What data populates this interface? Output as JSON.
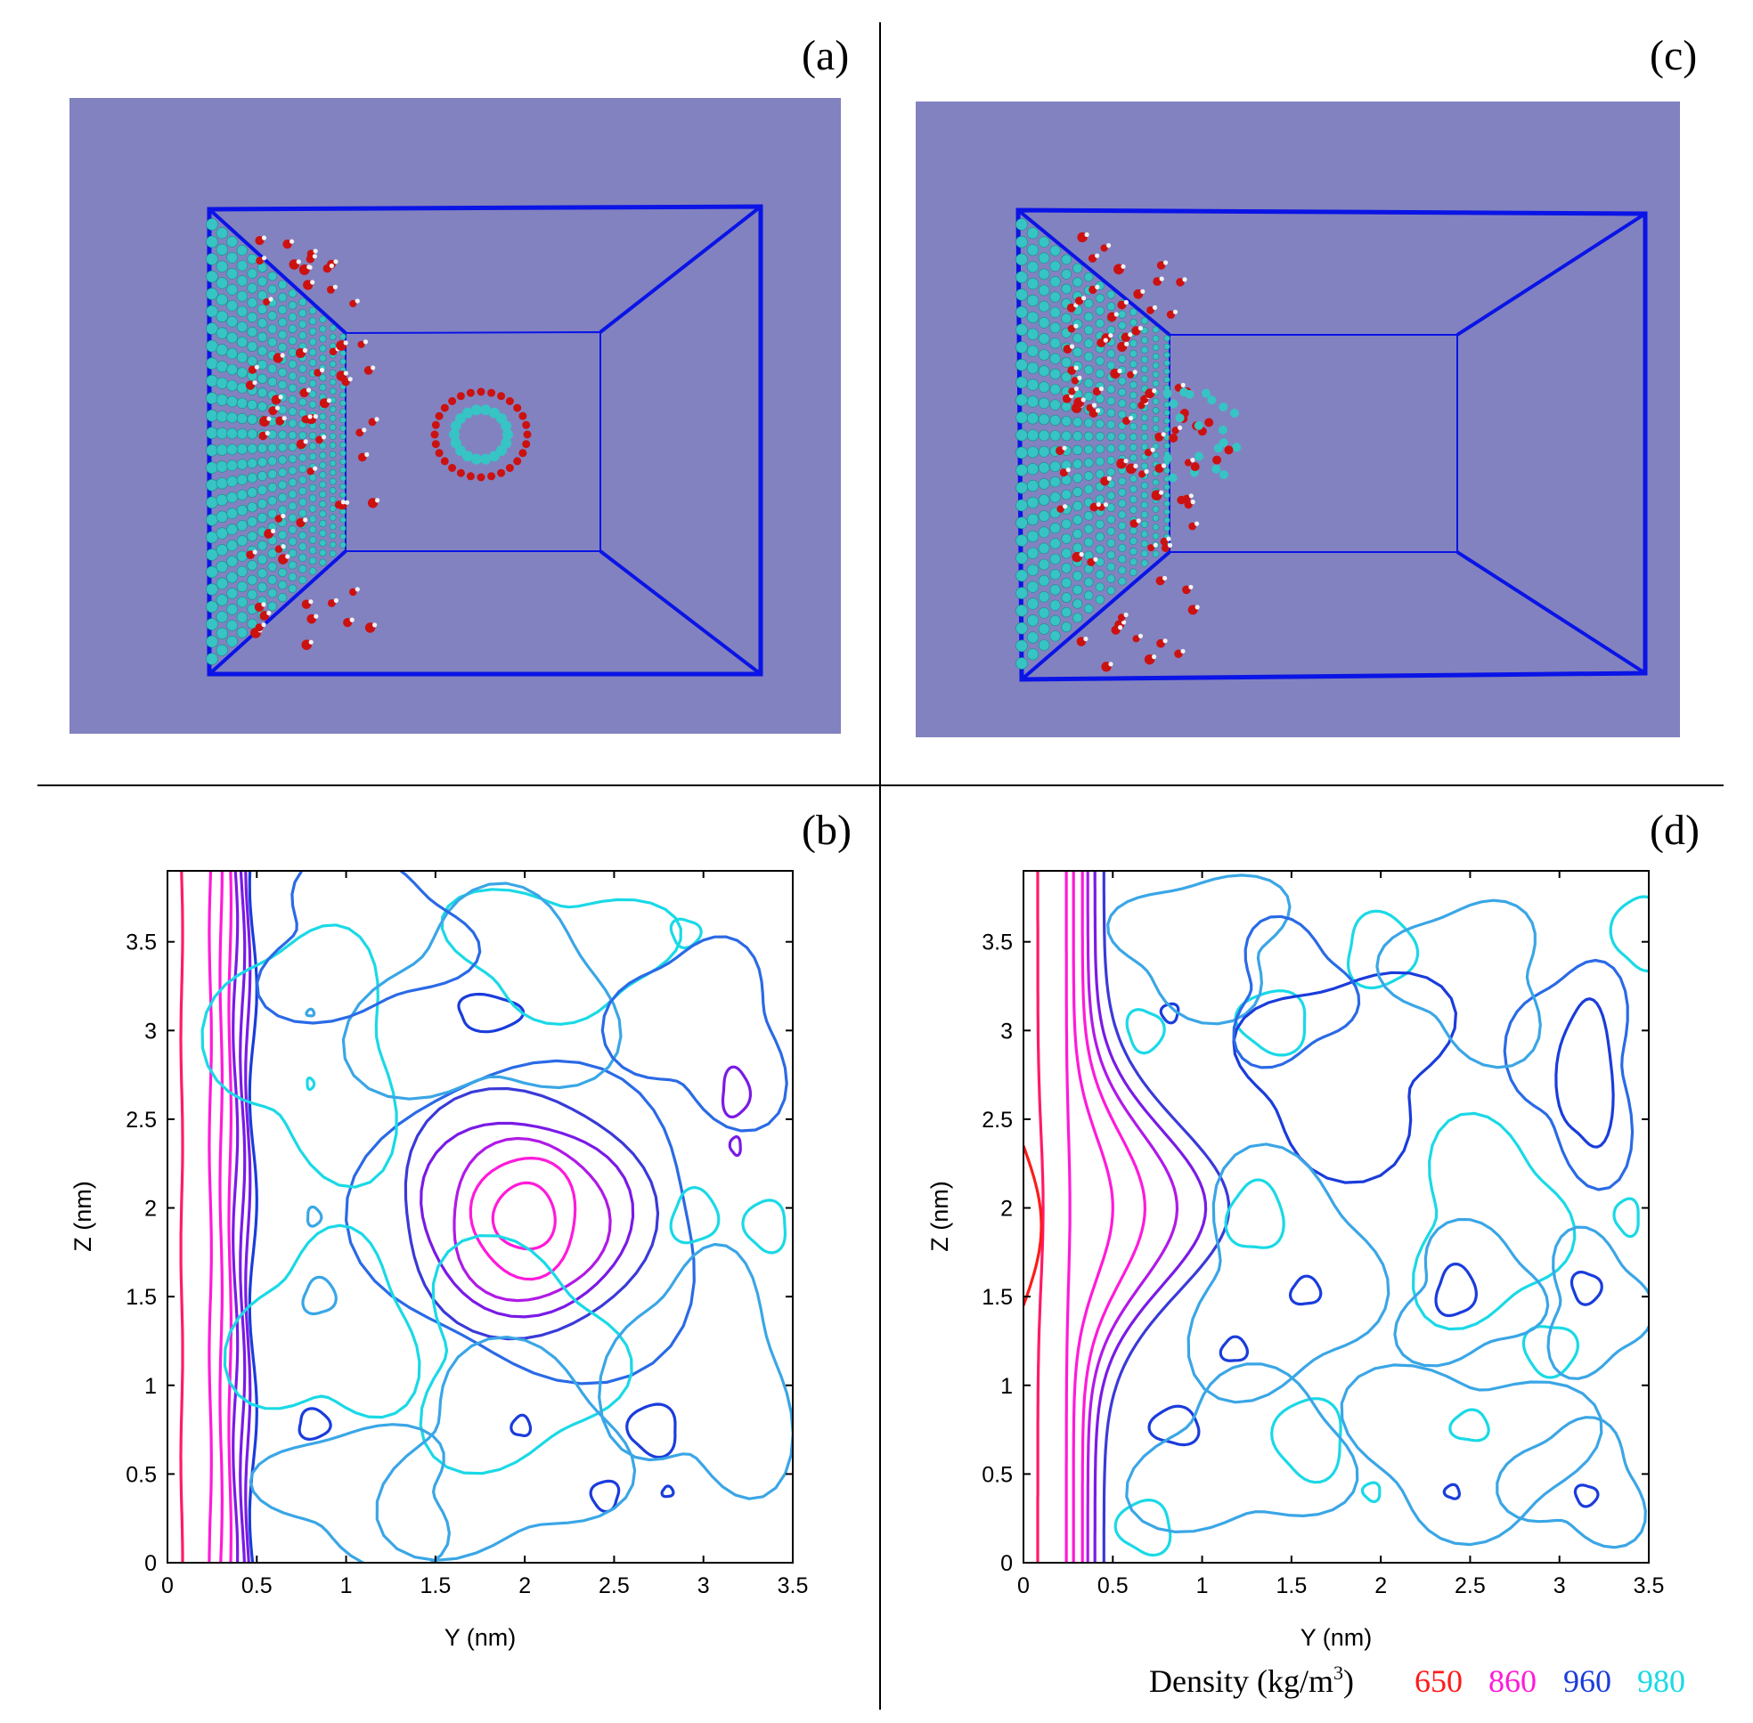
{
  "panel_labels": {
    "a": "(a)",
    "b": "(b)",
    "c": "(c)",
    "d": "(d)"
  },
  "simulation_views": {
    "background_color": "#8282c0",
    "box_color": "#0a14e6",
    "atom_colors": {
      "carbon": "#36c4c4",
      "oxygen": "#cc1111",
      "hydrogen": "#f2f2f2"
    }
  },
  "legend": {
    "title": "Density (kg/m",
    "unit_sup": "3",
    "unit_close": ")",
    "levels": [
      {
        "value": "650",
        "color": "#ff1a1a"
      },
      {
        "value": "860",
        "color": "#ff1ad9"
      },
      {
        "value": "960",
        "color": "#1a3cdc"
      },
      {
        "value": "980",
        "color": "#1ad9e6"
      }
    ]
  },
  "chart_data": [
    {
      "panel": "(b)",
      "type": "contour",
      "xlabel": "Y (nm)",
      "ylabel": "Z (nm)",
      "xlim": [
        0,
        3.5
      ],
      "ylim": [
        0,
        3.9
      ],
      "xticks": [
        "0",
        "0.5",
        "1",
        "1.5",
        "2",
        "2.5",
        "3",
        "3.5"
      ],
      "yticks": [
        "0",
        "0.5",
        "1",
        "1.5",
        "2",
        "2.5",
        "3",
        "3.5"
      ],
      "field": "density",
      "wall_y": 0.0,
      "depletion_center": [
        2.0,
        1.95
      ]
    },
    {
      "panel": "(d)",
      "type": "contour",
      "xlabel": "Y (nm)",
      "ylabel": "Z (nm)",
      "xlim": [
        0,
        3.5
      ],
      "ylim": [
        0,
        3.9
      ],
      "xticks": [
        "0",
        "0.5",
        "1",
        "1.5",
        "2",
        "2.5",
        "3",
        "3.5"
      ],
      "yticks": [
        "0",
        "0.5",
        "1",
        "1.5",
        "2",
        "2.5",
        "3",
        "3.5"
      ],
      "field": "density",
      "wall_y": 0.0,
      "bulge_center_z": 2.0
    }
  ]
}
